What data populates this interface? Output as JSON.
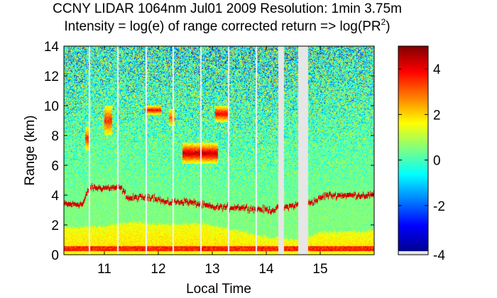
{
  "chart_data": {
    "type": "heatmap",
    "title_line1": "CCNY LIDAR 1064nm Jul01 2009 Resolution: 1min 3.75m",
    "title_line2_prefix": "Intensity = log(e) of range corrected return => log(PR",
    "title_line2_sup": "2",
    "title_line2_suffix": ")",
    "xlabel": "Local Time",
    "ylabel": "Range (km)",
    "xlim": [
      10.25,
      16.0
    ],
    "ylim": [
      0,
      14
    ],
    "xticks": [
      11,
      12,
      13,
      14,
      15
    ],
    "yticks": [
      0,
      2,
      4,
      6,
      8,
      10,
      12,
      14
    ],
    "clim": [
      -4,
      5
    ],
    "colorbar_ticks": [
      -4,
      -2,
      0,
      2,
      4
    ],
    "colormap": "jet",
    "no_data_color": "#e6e6e6",
    "data_gaps_hours": [
      [
        14.22,
        14.33
      ],
      [
        14.59,
        14.78
      ]
    ],
    "vertical_streaks_hours": [
      10.72,
      11.25,
      11.78,
      12.28,
      12.79,
      13.3,
      13.82
    ],
    "boundary_layer_top_km": [
      {
        "t": 10.25,
        "z": 3.4
      },
      {
        "t": 10.6,
        "z": 3.4
      },
      {
        "t": 10.72,
        "z": 4.5
      },
      {
        "t": 11.3,
        "z": 4.5
      },
      {
        "t": 11.45,
        "z": 3.8
      },
      {
        "t": 11.9,
        "z": 3.9
      },
      {
        "t": 12.15,
        "z": 3.5
      },
      {
        "t": 12.5,
        "z": 3.6
      },
      {
        "t": 13.0,
        "z": 3.2
      },
      {
        "t": 13.5,
        "z": 3.2
      },
      {
        "t": 14.1,
        "z": 3.0
      },
      {
        "t": 14.9,
        "z": 3.6
      },
      {
        "t": 15.1,
        "z": 4.0
      },
      {
        "t": 16.0,
        "z": 4.0
      }
    ],
    "aerosol_layer_top_km": [
      {
        "t": 10.25,
        "z": 1.8
      },
      {
        "t": 11.0,
        "z": 1.9
      },
      {
        "t": 11.5,
        "z": 2.2
      },
      {
        "t": 12.2,
        "z": 2.0
      },
      {
        "t": 12.7,
        "z": 2.1
      },
      {
        "t": 13.4,
        "z": 1.7
      },
      {
        "t": 14.0,
        "z": 1.2
      },
      {
        "t": 14.6,
        "z": 1.0
      },
      {
        "t": 15.0,
        "z": 1.5
      },
      {
        "t": 16.0,
        "z": 1.6
      }
    ],
    "cloud_layers": [
      {
        "t_start": 12.45,
        "t_end": 13.1,
        "z_bottom": 6.1,
        "z_top": 7.5,
        "log_intensity": 4.5
      },
      {
        "t_start": 13.05,
        "t_end": 13.3,
        "z_bottom": 8.9,
        "z_top": 10.0,
        "log_intensity": 4.0
      },
      {
        "t_start": 10.65,
        "t_end": 10.72,
        "z_bottom": 7.0,
        "z_top": 8.6,
        "log_intensity": 3.5
      },
      {
        "t_start": 11.0,
        "t_end": 11.15,
        "z_bottom": 8.0,
        "z_top": 10.0,
        "log_intensity": 3.5
      },
      {
        "t_start": 11.75,
        "t_end": 12.05,
        "z_bottom": 9.4,
        "z_top": 10.0,
        "log_intensity": 4.0
      },
      {
        "t_start": 12.2,
        "t_end": 12.3,
        "z_bottom": 8.6,
        "z_top": 9.8,
        "log_intensity": 3.0
      }
    ]
  }
}
